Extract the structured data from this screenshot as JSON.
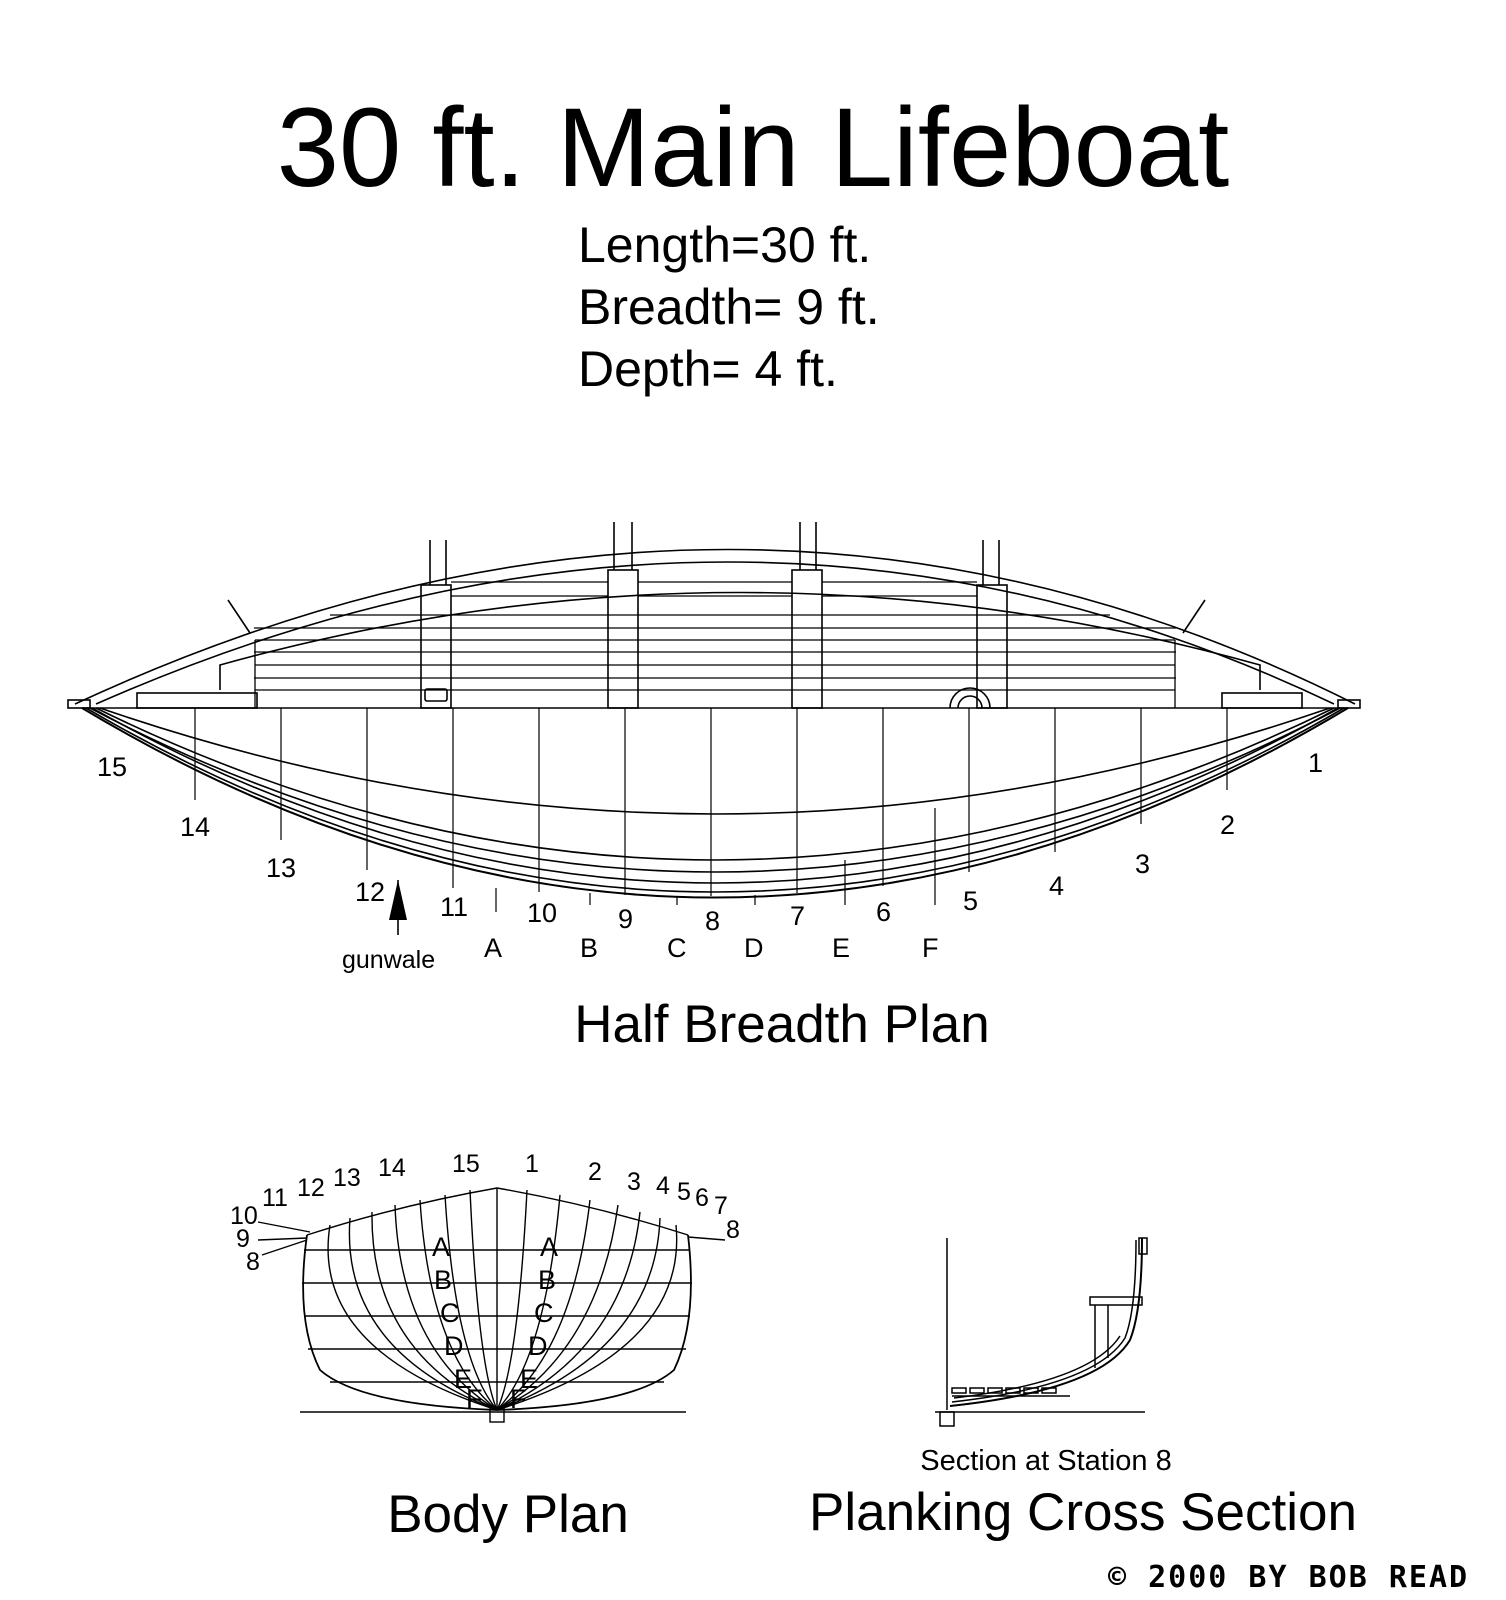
{
  "title": "30 ft. Main Lifeboat",
  "specs": {
    "length": "Length=30 ft.",
    "breadth": "Breadth= 9 ft.",
    "depth": "Depth= 4 ft."
  },
  "half_breadth": {
    "caption": "Half Breadth Plan",
    "gunwale_label": "gunwale",
    "station_labels": [
      "15",
      "14",
      "13",
      "12",
      "11",
      "10",
      "9",
      "8",
      "7",
      "6",
      "5",
      "4",
      "3",
      "2",
      "1"
    ],
    "waterline_labels": [
      "A",
      "B",
      "C",
      "D",
      "E",
      "F"
    ]
  },
  "body_plan": {
    "caption": "Body Plan",
    "top_labels": [
      "15",
      "1",
      "14",
      "2",
      "13",
      "3",
      "12",
      "4",
      "11",
      "5",
      "10",
      "6",
      "9",
      "7",
      "8",
      "8",
      "8"
    ],
    "waterline_labels_left": [
      "A",
      "B",
      "C",
      "D",
      "E",
      "F"
    ],
    "waterline_labels_right": [
      "A",
      "B",
      "C",
      "D",
      "E",
      "F"
    ]
  },
  "cross_section": {
    "subcaption": "Section at Station 8",
    "caption": "Planking Cross Section"
  },
  "copyright": "© 2000 BY BOB READ"
}
